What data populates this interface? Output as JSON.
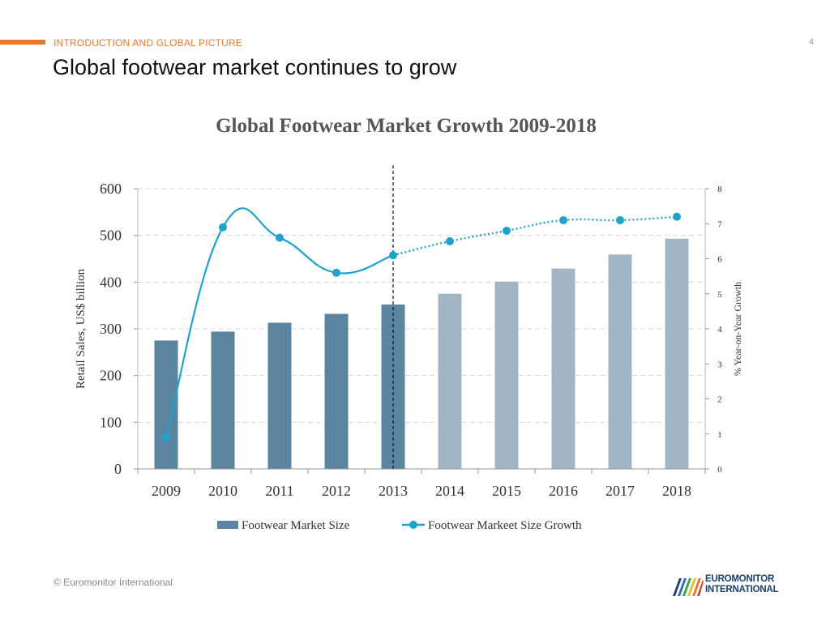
{
  "header": {
    "section_label": "INTRODUCTION AND GLOBAL PICTURE",
    "page_number": "4",
    "title": "Global footwear market continues to grow"
  },
  "footer": {
    "copyright": "© Euromonitor International",
    "logo_line1": "EUROMONITOR",
    "logo_line2": "INTERNATIONAL"
  },
  "colors": {
    "accent": "#e8772e",
    "bar_actual": "#5b84a0",
    "bar_forecast": "#a0b6c4",
    "line": "#1fa3cc"
  },
  "chart_data": {
    "type": "bar",
    "title": "Global Footwear Market Growth 2009-2018",
    "ylabel": "Retail Sales, US$ billion",
    "y2label": "% Year-on-Year Growth",
    "categories": [
      "2009",
      "2010",
      "2011",
      "2012",
      "2013",
      "2014",
      "2015",
      "2016",
      "2017",
      "2018"
    ],
    "ylim": [
      0,
      600
    ],
    "yticks": [
      0,
      100,
      200,
      300,
      400,
      500,
      600
    ],
    "y2lim": [
      0,
      8
    ],
    "y2ticks": [
      0,
      1,
      2,
      3,
      4,
      5,
      6,
      7,
      8
    ],
    "grid": true,
    "legend_position": "bottom",
    "forecast_start": "2014",
    "divider_after": "2013",
    "series": [
      {
        "name": "Footwear Market Size",
        "type": "bar",
        "axis": "left",
        "values": [
          275,
          294,
          313,
          332,
          352,
          375,
          401,
          429,
          459,
          493
        ]
      },
      {
        "name": "Footwear Markeet Size Growth",
        "type": "line",
        "axis": "right",
        "values": [
          0.9,
          6.9,
          6.6,
          5.6,
          6.1,
          6.5,
          6.8,
          7.1,
          7.1,
          7.2
        ]
      }
    ]
  }
}
